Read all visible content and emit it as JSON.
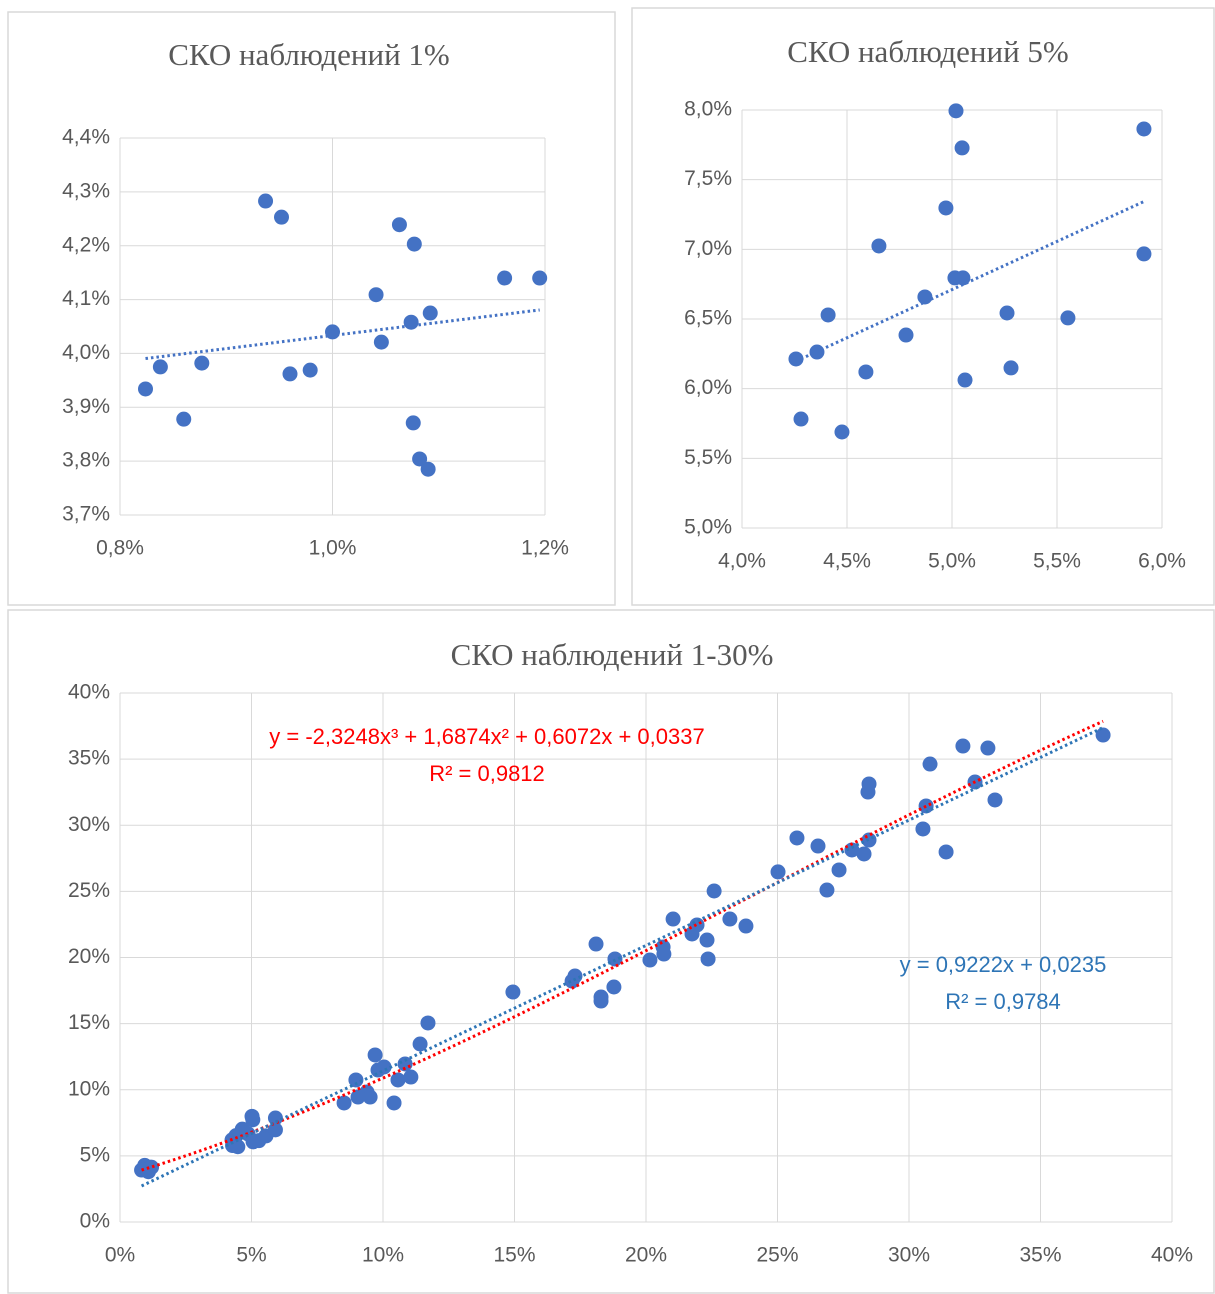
{
  "chart_data": [
    {
      "type": "scatter",
      "title": "СКО наблюдений 1%",
      "color": "#4472c4",
      "grid": true,
      "x": [
        0.824,
        0.838,
        0.86,
        0.877,
        0.937,
        0.952,
        0.96,
        0.979,
        1.0,
        1.041,
        1.046,
        1.063,
        1.074,
        1.077,
        1.076,
        1.082,
        1.092,
        1.09,
        1.162,
        1.195
      ],
      "values": [
        3.934,
        3.975,
        3.878,
        3.982,
        4.283,
        4.253,
        3.962,
        3.969,
        4.04,
        4.109,
        4.021,
        4.239,
        4.058,
        4.203,
        3.871,
        3.804,
        4.075,
        3.785,
        4.14,
        4.14
      ],
      "xlim": [
        0.8,
        1.2
      ],
      "xticks": [
        {
          "value": 0.8,
          "label": "0,8%"
        },
        {
          "value": 1.0,
          "label": "1,0%"
        },
        {
          "value": 1.2,
          "label": "1,2%"
        }
      ],
      "ylim": [
        3.7,
        4.4
      ],
      "yticks": [
        {
          "value": 3.7,
          "label": "3,7%"
        },
        {
          "value": 3.8,
          "label": "3,8%"
        },
        {
          "value": 3.9,
          "label": "3,9%"
        },
        {
          "value": 4.0,
          "label": "4,0%"
        },
        {
          "value": 4.1,
          "label": "4,1%"
        },
        {
          "value": 4.2,
          "label": "4,2%"
        },
        {
          "value": 4.3,
          "label": "4,3%"
        },
        {
          "value": 4.4,
          "label": "4,4%"
        }
      ],
      "trendlines": [
        {
          "degree": 1,
          "color": "#4472c4"
        }
      ]
    },
    {
      "type": "scatter",
      "title": "СКО наблюдений 5%",
      "color": "#4472c4",
      "grid": true,
      "x": [
        4.257,
        4.281,
        4.357,
        4.41,
        4.476,
        4.59,
        4.652,
        4.781,
        4.871,
        4.971,
        5.019,
        5.014,
        5.052,
        5.048,
        5.062,
        5.262,
        5.281,
        5.552,
        5.914,
        5.914
      ],
      "values": [
        6.213,
        5.782,
        6.263,
        6.529,
        5.689,
        6.12,
        7.024,
        6.385,
        6.658,
        7.297,
        7.994,
        6.795,
        6.795,
        7.728,
        6.062,
        6.543,
        6.149,
        6.508,
        7.864,
        6.967
      ],
      "xlim": [
        4.0,
        6.0
      ],
      "xticks": [
        {
          "value": 4.0,
          "label": "4,0%"
        },
        {
          "value": 4.5,
          "label": "4,5%"
        },
        {
          "value": 5.0,
          "label": "5,0%"
        },
        {
          "value": 5.5,
          "label": "5,5%"
        },
        {
          "value": 6.0,
          "label": "6,0%"
        }
      ],
      "ylim": [
        5.0,
        8.0
      ],
      "yticks": [
        {
          "value": 5.0,
          "label": "5,0%"
        },
        {
          "value": 5.5,
          "label": "5,5%"
        },
        {
          "value": 6.0,
          "label": "6,0%"
        },
        {
          "value": 6.5,
          "label": "6,5%"
        },
        {
          "value": 7.0,
          "label": "7,0%"
        },
        {
          "value": 7.5,
          "label": "7,5%"
        },
        {
          "value": 8.0,
          "label": "8,0%"
        }
      ],
      "trendlines": [
        {
          "degree": 1,
          "color": "#4472c4"
        }
      ]
    },
    {
      "type": "scatter",
      "title": "СКО наблюдений 1-30%",
      "color": "#4472c4",
      "grid": true,
      "x": [
        0.82,
        0.94,
        1.0,
        1.08,
        1.16,
        1.2,
        4.26,
        4.28,
        4.41,
        4.48,
        4.65,
        4.87,
        5.02,
        5.05,
        5.06,
        5.28,
        5.55,
        5.91,
        5.91,
        8.52,
        8.97,
        9.05,
        9.39,
        9.7,
        9.51,
        9.81,
        10.04,
        10.42,
        10.57,
        10.84,
        11.06,
        11.41,
        11.71,
        14.94,
        17.19,
        17.3,
        18.1,
        18.29,
        18.29,
        18.78,
        18.82,
        20.15,
        20.65,
        20.68,
        21.03,
        21.75,
        21.94,
        22.32,
        22.36,
        22.59,
        23.19,
        23.8,
        25.02,
        25.74,
        26.54,
        26.88,
        27.34,
        27.83,
        28.29,
        28.44,
        28.48,
        28.48,
        30.53,
        30.65,
        30.8,
        31.41,
        32.05,
        32.51,
        33.0,
        33.27,
        37.38
      ],
      "values": [
        3.93,
        4.28,
        4.04,
        3.8,
        4.14,
        4.14,
        6.21,
        5.78,
        6.53,
        5.69,
        7.02,
        6.66,
        7.99,
        7.73,
        6.06,
        6.15,
        6.51,
        7.86,
        6.97,
        9.0,
        10.74,
        9.45,
        9.83,
        12.63,
        9.45,
        11.49,
        11.72,
        9.0,
        10.74,
        11.95,
        10.96,
        13.46,
        15.05,
        17.39,
        18.22,
        18.6,
        21.02,
        17.01,
        16.71,
        17.77,
        19.89,
        19.81,
        20.79,
        20.26,
        22.91,
        21.78,
        22.46,
        21.32,
        19.89,
        25.03,
        22.91,
        22.38,
        26.47,
        29.04,
        28.43,
        25.1,
        26.62,
        28.13,
        27.83,
        32.51,
        33.12,
        28.88,
        29.72,
        31.46,
        34.63,
        27.98,
        35.99,
        33.27,
        35.84,
        31.91,
        36.82
      ],
      "xlim": [
        0,
        40
      ],
      "xticks": [
        {
          "value": 0,
          "label": "0%"
        },
        {
          "value": 5,
          "label": "5%"
        },
        {
          "value": 10,
          "label": "10%"
        },
        {
          "value": 15,
          "label": "15%"
        },
        {
          "value": 20,
          "label": "20%"
        },
        {
          "value": 25,
          "label": "25%"
        },
        {
          "value": 30,
          "label": "30%"
        },
        {
          "value": 35,
          "label": "35%"
        },
        {
          "value": 40,
          "label": "40%"
        }
      ],
      "ylim": [
        0,
        40
      ],
      "yticks": [
        {
          "value": 0,
          "label": "0%"
        },
        {
          "value": 5,
          "label": "5%"
        },
        {
          "value": 10,
          "label": "10%"
        },
        {
          "value": 15,
          "label": "15%"
        },
        {
          "value": 20,
          "label": "20%"
        },
        {
          "value": 25,
          "label": "25%"
        },
        {
          "value": 30,
          "label": "30%"
        },
        {
          "value": 35,
          "label": "35%"
        },
        {
          "value": 40,
          "label": "40%"
        }
      ],
      "trendlines": [
        {
          "degree": 3,
          "color": "#ff0000",
          "equation": "y = -2,3248x³ + 1,6874x² + 0,6072x + 0,0337",
          "r2": "R² = 0,9812"
        },
        {
          "degree": 1,
          "color": "#2e75b6",
          "equation": "y = 0,9222x + 0,0235",
          "r2": "R² = 0,9784"
        }
      ]
    }
  ]
}
